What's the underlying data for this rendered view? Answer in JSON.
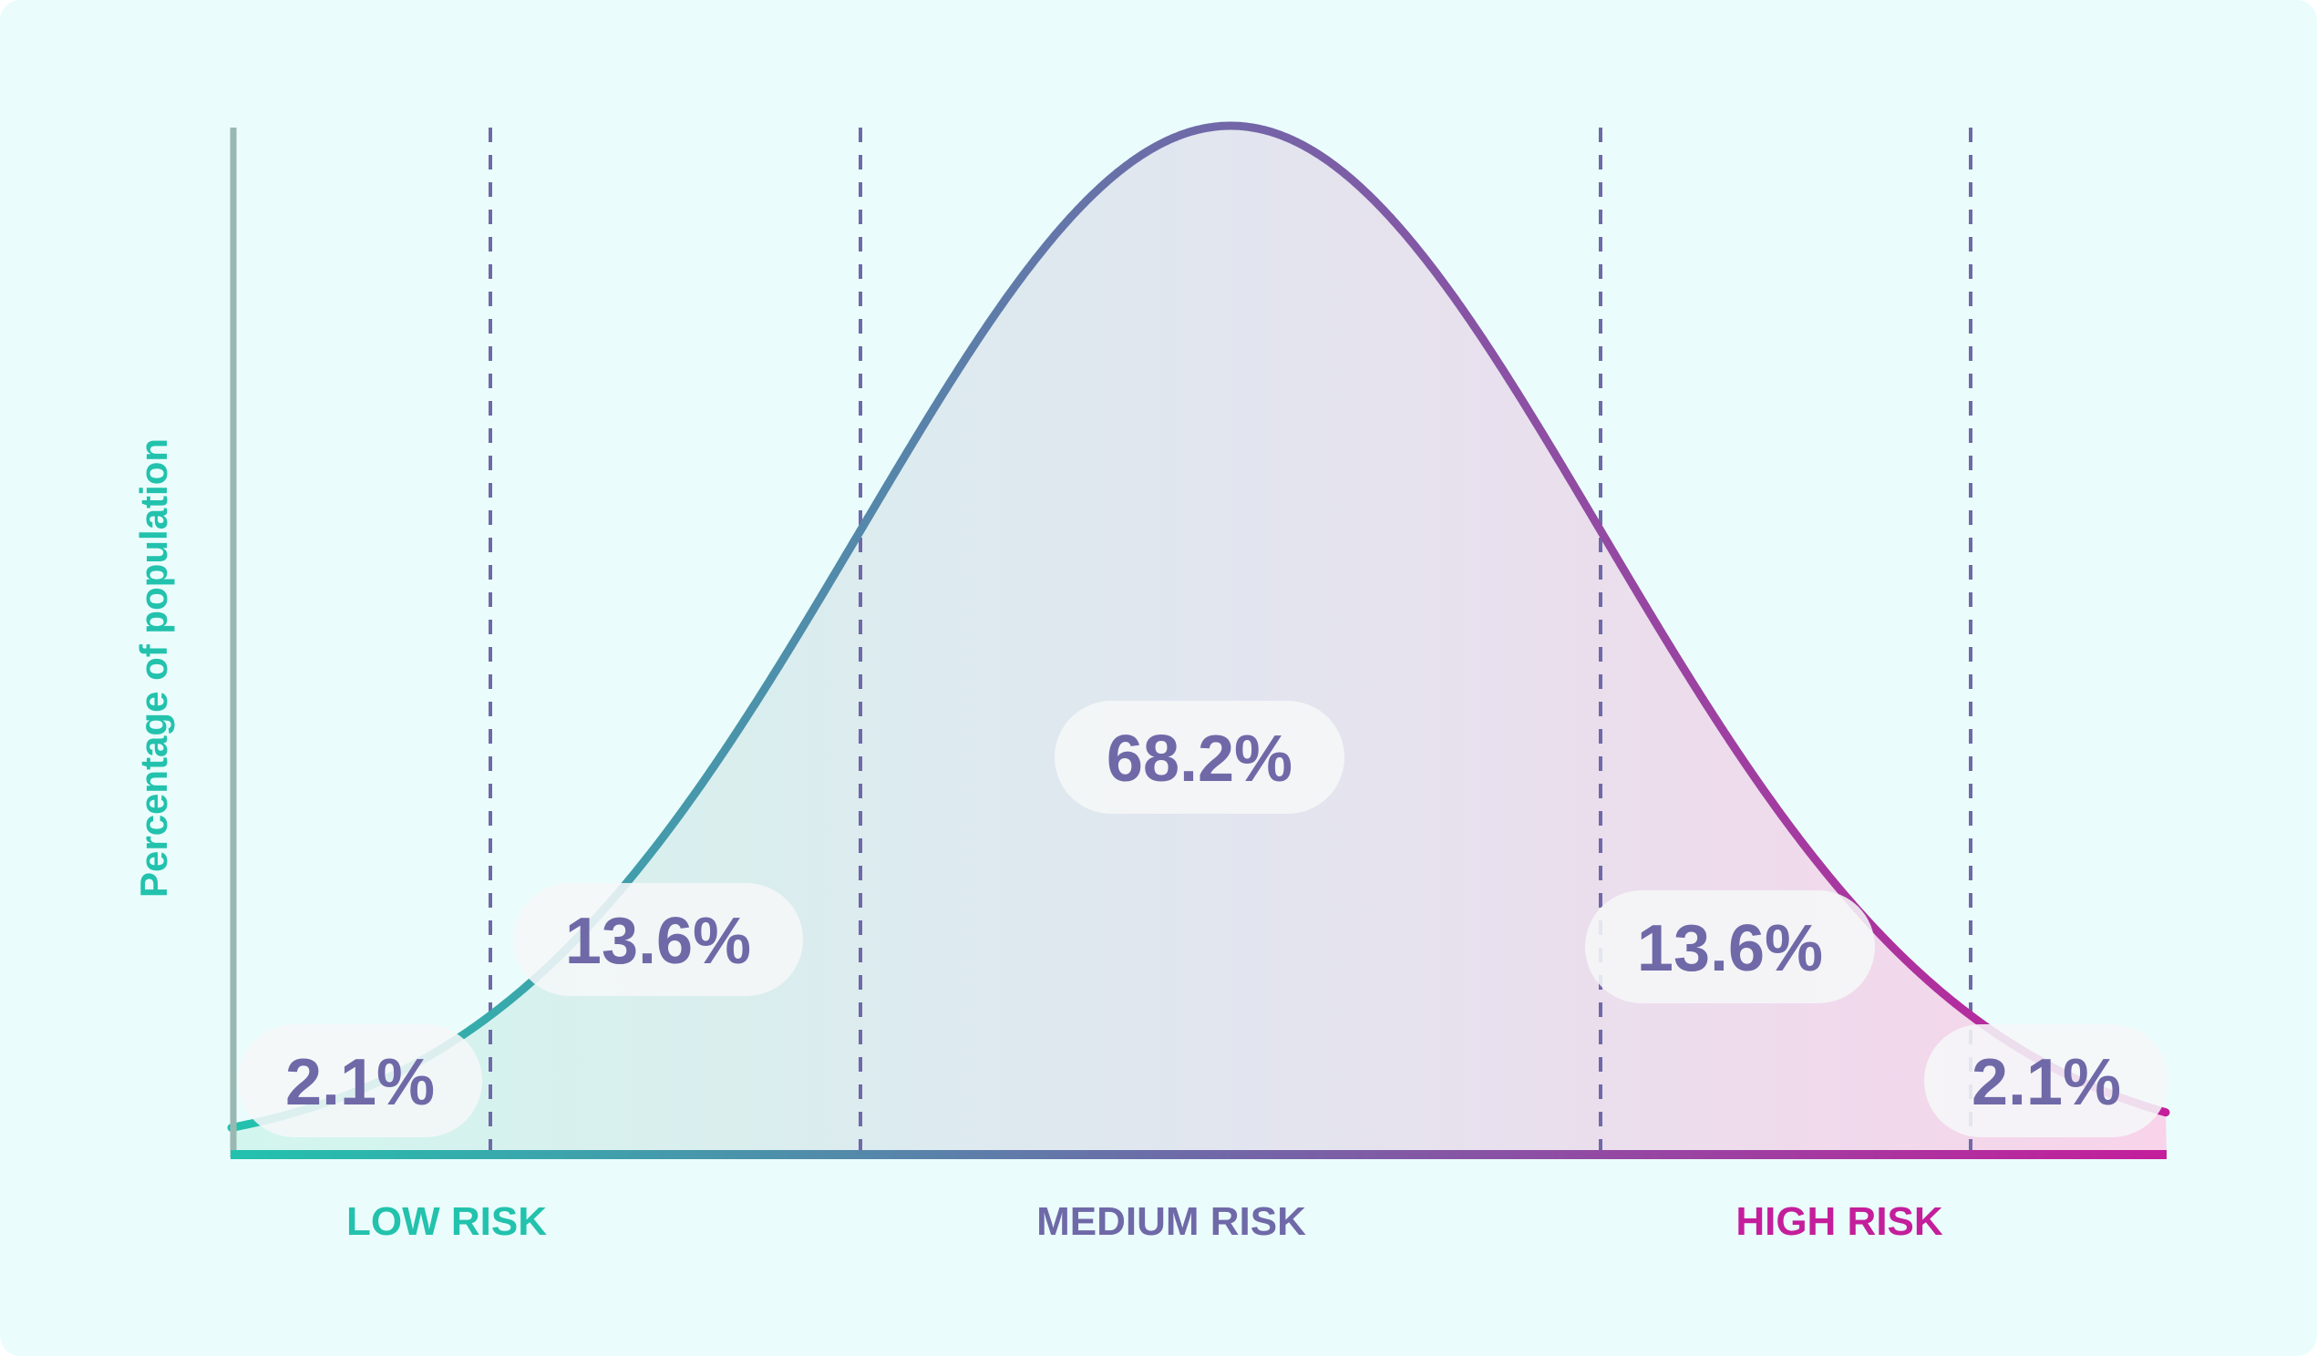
{
  "chart_data": {
    "type": "area",
    "distribution": "normal",
    "ylabel": "Percentage of population",
    "xlabel": "",
    "x_range_sd": [
      -3.0,
      3.0
    ],
    "boundaries_sd": [
      -2,
      -1,
      1,
      2
    ],
    "curve_peak_x_sd": 0,
    "segments": [
      {
        "from_sd": -3,
        "to_sd": -2,
        "value": "2.1%"
      },
      {
        "from_sd": -2,
        "to_sd": -1,
        "value": "13.6%"
      },
      {
        "from_sd": -1,
        "to_sd": 1,
        "value": "68.2%"
      },
      {
        "from_sd": 1,
        "to_sd": 2,
        "value": "13.6%"
      },
      {
        "from_sd": 2,
        "to_sd": 3,
        "value": "2.1%"
      }
    ],
    "categories": [
      {
        "label": "LOW RISK",
        "color": "#22c2ad"
      },
      {
        "label": "MEDIUM RISK",
        "color": "#6f69a8"
      },
      {
        "label": "HIGH RISK",
        "color": "#c41e9b"
      }
    ],
    "grid": false
  },
  "colors": {
    "background": "#eafdfc",
    "axis": "#9ab8b2",
    "low": "#22c2ad",
    "medium": "#6f69a8",
    "high": "#c41e9b",
    "label_text": "#6f69a8",
    "label_bg": "#f5f7f8",
    "dashed": "#6f69a8"
  }
}
